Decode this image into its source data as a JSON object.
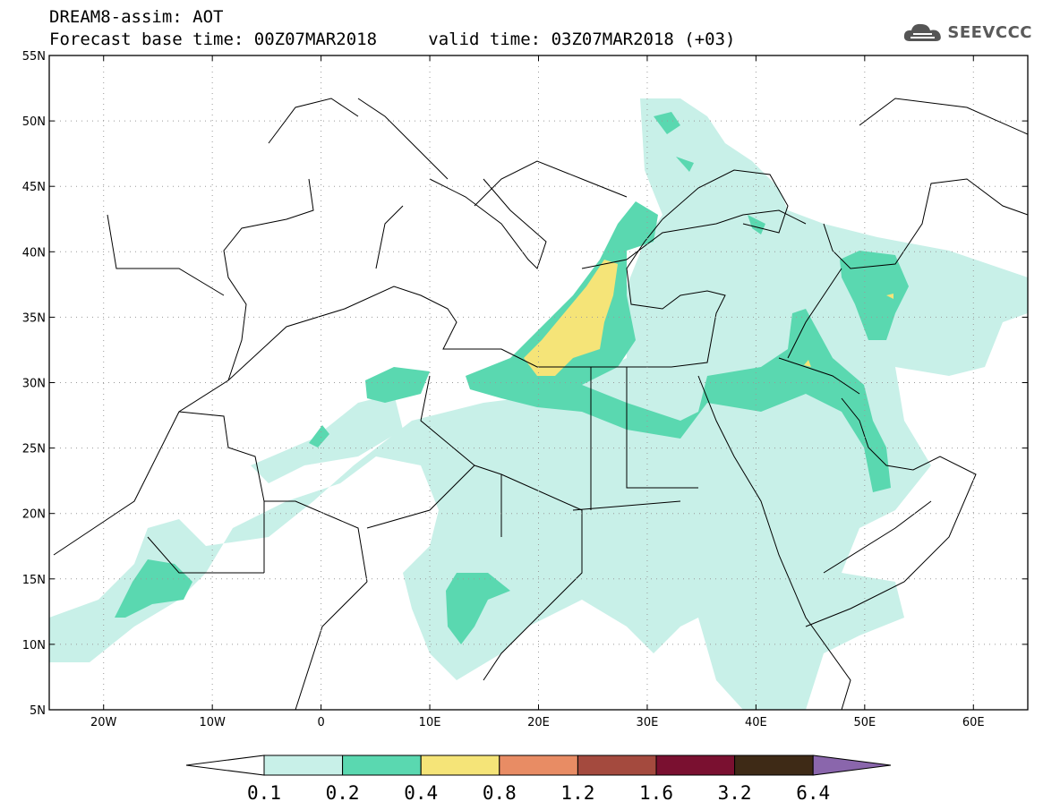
{
  "header": {
    "title": "DREAM8-assim: AOT",
    "base_time_label": "Forecast base time:",
    "base_time": "00Z07MAR2018",
    "valid_time_label": "valid time:",
    "valid_time": "03Z07MAR2018 (+03)"
  },
  "logo": {
    "text": "SEEVCCC",
    "icon": "cloud-icon"
  },
  "map": {
    "lat_labels": [
      "55N",
      "50N",
      "45N",
      "40N",
      "35N",
      "30N",
      "25N",
      "20N",
      "15N",
      "10N",
      "5N"
    ],
    "lon_labels": [
      "20W",
      "10W",
      "0",
      "10E",
      "20E",
      "30E",
      "40E",
      "50E",
      "60E"
    ],
    "lon_range": [
      -25,
      65
    ],
    "lat_range": [
      5,
      55
    ]
  },
  "colorbar": {
    "thresholds": [
      "0.1",
      "0.2",
      "0.4",
      "0.8",
      "1.2",
      "1.6",
      "3.2",
      "6.4"
    ],
    "colors": [
      "#ffffff",
      "#c8f0e8",
      "#5ad8b0",
      "#f5e478",
      "#e88c64",
      "#a44a3e",
      "#7a1030",
      "#3e2a16",
      "#8a66ac"
    ]
  }
}
